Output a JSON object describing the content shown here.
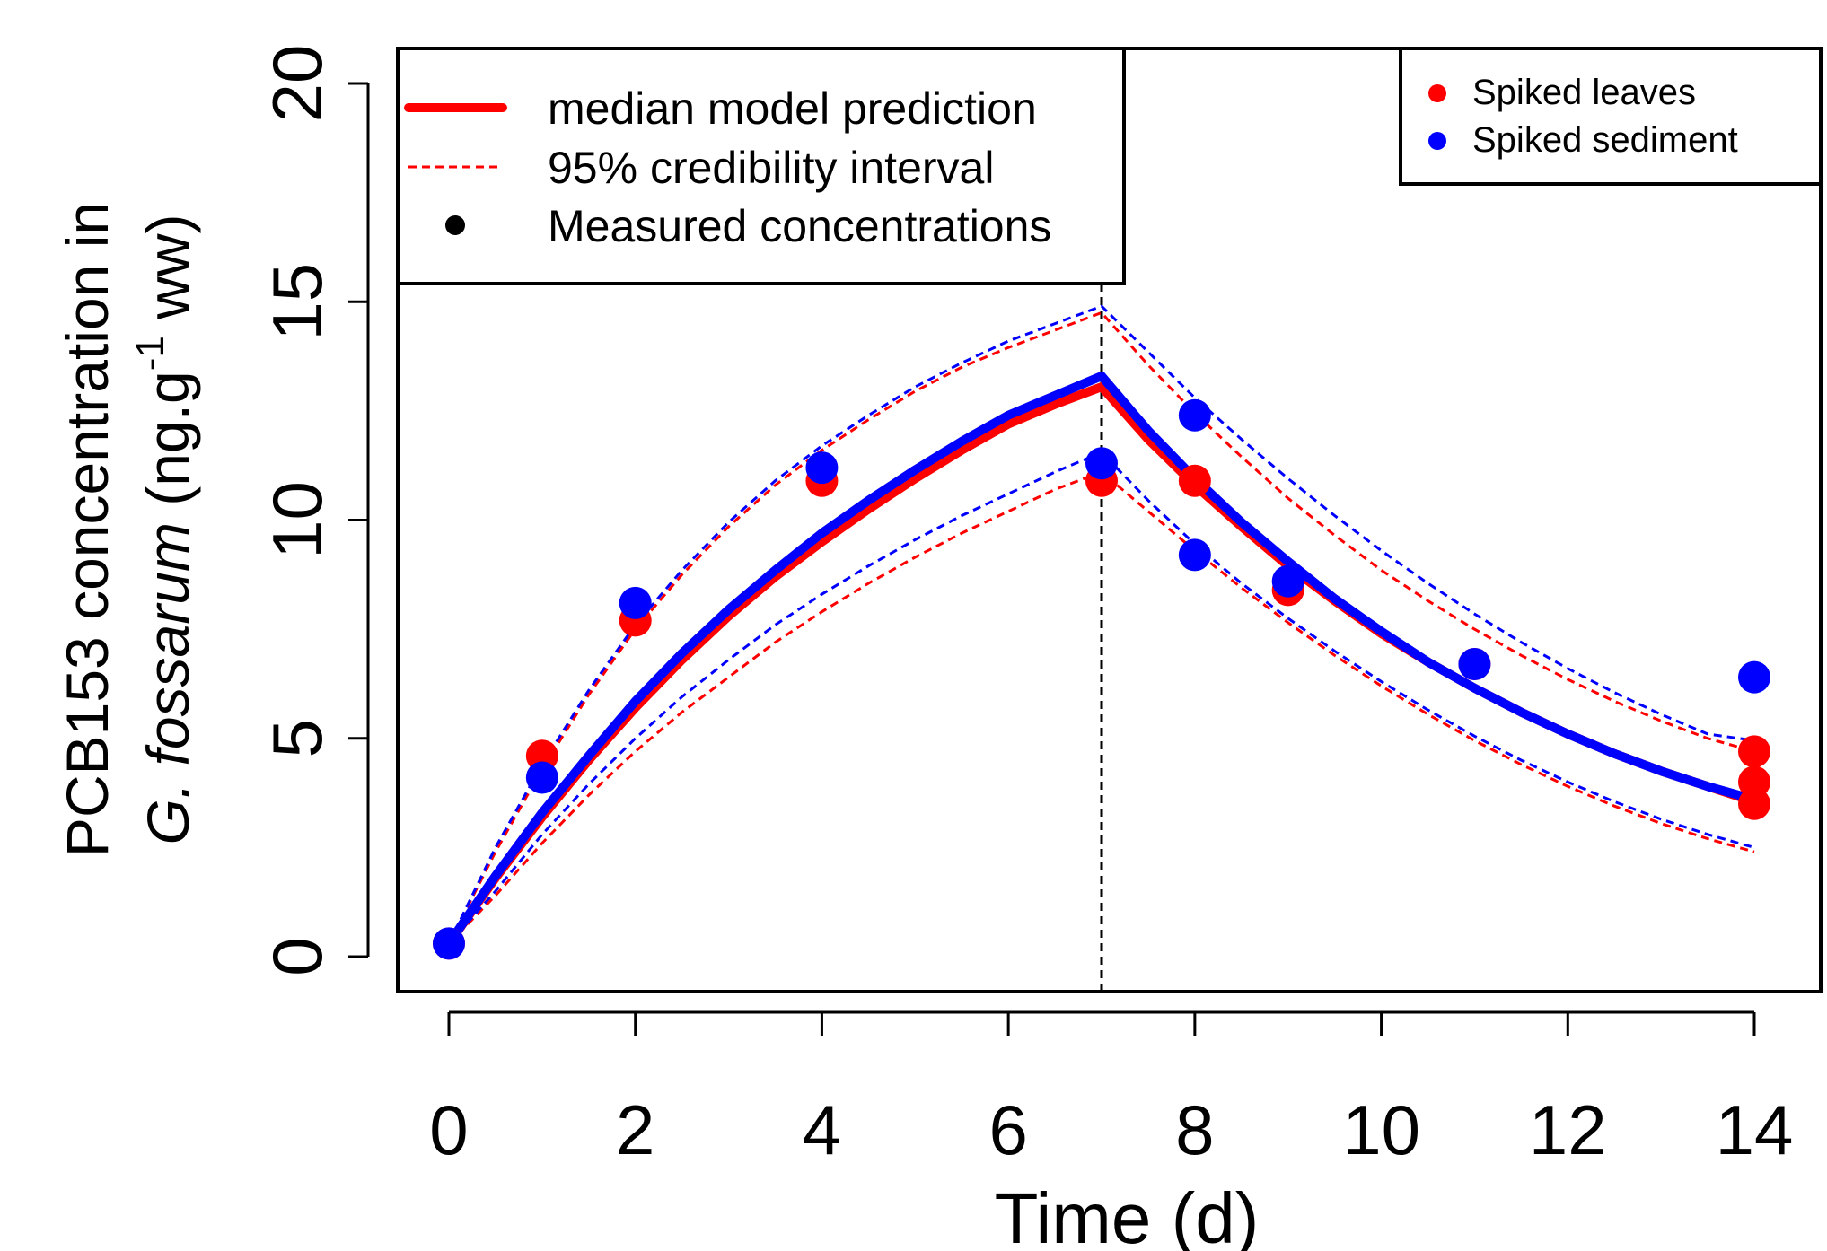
{
  "chart_data": {
    "type": "line",
    "xlabel": "Time (d)",
    "ylabel": {
      "line1": "PCB153 concentration in",
      "species": "G. fossarum",
      "unit_open": " (ng.g",
      "unit_sup": "-1",
      "unit_close": " ww)"
    },
    "xlim": [
      0,
      14
    ],
    "ylim": [
      0,
      20
    ],
    "xticks": [
      "0",
      "2",
      "4",
      "6",
      "8",
      "10",
      "12",
      "14"
    ],
    "xtick_values": [
      0,
      2,
      4,
      6,
      8,
      10,
      12,
      14
    ],
    "yticks": [
      "0",
      "5",
      "10",
      "15",
      "20"
    ],
    "ytick_values": [
      0,
      5,
      10,
      15,
      20
    ],
    "vline": 7,
    "grid": false,
    "colors": {
      "leaves": "#ff0000",
      "sediment": "#0000ff",
      "vline": "#000000"
    },
    "series": [
      {
        "name": "Spiked leaves",
        "color": "#ff0000",
        "median": {
          "x": [
            0,
            0.5,
            1,
            1.5,
            2,
            2.5,
            3,
            3.5,
            4,
            4.5,
            5,
            5.5,
            6,
            6.5,
            7,
            7.5,
            8,
            8.5,
            9,
            9.5,
            10,
            10.5,
            11,
            11.5,
            12,
            12.5,
            13,
            13.5,
            14
          ],
          "y": [
            0.3,
            1.8,
            3.2,
            4.5,
            5.7,
            6.8,
            7.8,
            8.7,
            9.5,
            10.25,
            10.95,
            11.6,
            12.2,
            12.65,
            13.05,
            11.85,
            10.8,
            9.85,
            8.95,
            8.15,
            7.4,
            6.75,
            6.15,
            5.6,
            5.1,
            4.65,
            4.25,
            3.9,
            3.55
          ]
        },
        "lower": {
          "x": [
            0,
            0.5,
            1,
            1.5,
            2,
            2.5,
            3,
            3.5,
            4,
            4.5,
            5,
            5.5,
            6,
            6.5,
            7,
            7.5,
            8,
            8.5,
            9,
            9.5,
            10,
            10.5,
            11,
            11.5,
            12,
            12.5,
            13,
            13.5,
            14
          ],
          "y": [
            0.3,
            1.4,
            2.6,
            3.7,
            4.7,
            5.6,
            6.4,
            7.2,
            7.9,
            8.55,
            9.15,
            9.7,
            10.2,
            10.7,
            11.1,
            10.2,
            9.3,
            8.45,
            7.65,
            6.9,
            6.2,
            5.55,
            4.95,
            4.4,
            3.9,
            3.45,
            3.05,
            2.7,
            2.4
          ]
        },
        "upper": {
          "x": [
            0,
            0.5,
            1,
            1.5,
            2,
            2.5,
            3,
            3.5,
            4,
            4.5,
            5,
            5.5,
            6,
            6.5,
            7,
            7.5,
            8,
            8.5,
            9,
            9.5,
            10,
            10.5,
            11,
            11.5,
            12,
            12.5,
            13,
            13.5,
            14
          ],
          "y": [
            0.3,
            2.4,
            4.3,
            6.0,
            7.5,
            8.75,
            9.85,
            10.8,
            11.6,
            12.3,
            12.95,
            13.5,
            13.95,
            14.35,
            14.75,
            13.55,
            12.45,
            11.45,
            10.5,
            9.65,
            8.85,
            8.15,
            7.5,
            6.9,
            6.35,
            5.85,
            5.4,
            5.0,
            4.7
          ]
        },
        "points": {
          "x": [
            0,
            1,
            2,
            4,
            7,
            8,
            9,
            11,
            14,
            14,
            14
          ],
          "y": [
            0.3,
            4.6,
            7.7,
            10.9,
            10.9,
            10.9,
            8.4,
            6.7,
            4.7,
            4.0,
            3.5
          ]
        }
      },
      {
        "name": "Spiked sediment",
        "color": "#0000ff",
        "median": {
          "x": [
            0,
            0.5,
            1,
            1.5,
            2,
            2.5,
            3,
            3.5,
            4,
            4.5,
            5,
            5.5,
            6,
            6.5,
            7,
            7.5,
            8,
            8.5,
            9,
            9.5,
            10,
            10.5,
            11,
            11.5,
            12,
            12.5,
            13,
            13.5,
            14
          ],
          "y": [
            0.3,
            1.85,
            3.3,
            4.6,
            5.85,
            6.95,
            7.95,
            8.85,
            9.7,
            10.45,
            11.15,
            11.8,
            12.4,
            12.85,
            13.3,
            12.05,
            10.95,
            9.95,
            9.05,
            8.2,
            7.45,
            6.75,
            6.15,
            5.6,
            5.1,
            4.65,
            4.25,
            3.9,
            3.6
          ]
        },
        "lower": {
          "x": [
            0,
            0.5,
            1,
            1.5,
            2,
            2.5,
            3,
            3.5,
            4,
            4.5,
            5,
            5.5,
            6,
            6.5,
            7,
            7.5,
            8,
            8.5,
            9,
            9.5,
            10,
            10.5,
            11,
            11.5,
            12,
            12.5,
            13,
            13.5,
            14
          ],
          "y": [
            0.3,
            1.5,
            2.8,
            3.95,
            5.0,
            5.95,
            6.8,
            7.6,
            8.3,
            8.95,
            9.55,
            10.1,
            10.6,
            11.1,
            11.55,
            10.45,
            9.45,
            8.55,
            7.75,
            7.0,
            6.3,
            5.65,
            5.05,
            4.5,
            4.0,
            3.55,
            3.15,
            2.8,
            2.5
          ]
        },
        "upper": {
          "x": [
            0,
            0.5,
            1,
            1.5,
            2,
            2.5,
            3,
            3.5,
            4,
            4.5,
            5,
            5.5,
            6,
            6.5,
            7,
            7.5,
            8,
            8.5,
            9,
            9.5,
            10,
            10.5,
            11,
            11.5,
            12,
            12.5,
            13,
            13.5,
            14
          ],
          "y": [
            0.3,
            2.5,
            4.4,
            6.1,
            7.6,
            8.85,
            9.95,
            10.9,
            11.7,
            12.4,
            13.05,
            13.6,
            14.1,
            14.5,
            14.9,
            13.85,
            12.8,
            11.85,
            10.95,
            10.1,
            9.3,
            8.55,
            7.85,
            7.2,
            6.6,
            6.05,
            5.55,
            5.1,
            4.95
          ]
        },
        "points": {
          "x": [
            0,
            1,
            2,
            4,
            7,
            8,
            8,
            9,
            11,
            14
          ],
          "y": [
            0.3,
            4.1,
            8.1,
            11.2,
            11.3,
            12.4,
            9.2,
            8.6,
            6.7,
            6.4
          ]
        }
      }
    ],
    "legend_left": {
      "position": "top-left",
      "entries": [
        {
          "label": "median model prediction",
          "style": "solid"
        },
        {
          "label": "95% credibility interval",
          "style": "dashed"
        },
        {
          "label": "Measured concentrations",
          "style": "point"
        }
      ]
    },
    "legend_right": {
      "position": "top-right",
      "entries": [
        {
          "label": "Spiked leaves",
          "color": "#ff0000"
        },
        {
          "label": "Spiked sediment",
          "color": "#0000ff"
        }
      ]
    }
  }
}
